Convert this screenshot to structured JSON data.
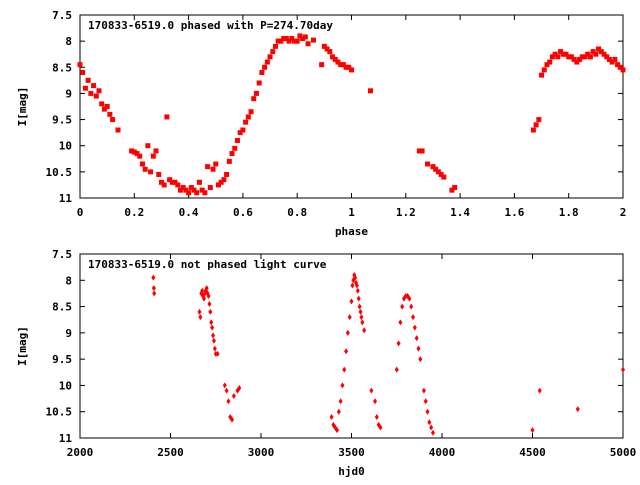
{
  "chart_data": [
    {
      "type": "scatter",
      "title": "170833-6519.0 phased with P=274.70day",
      "xlabel": "phase",
      "ylabel": "I[mag]",
      "xlim": [
        0,
        2
      ],
      "ylim": [
        11,
        7.5
      ],
      "y_inverted": true,
      "xticks": [
        0,
        0.2,
        0.4,
        0.6,
        0.8,
        1,
        1.2,
        1.4,
        1.6,
        1.8,
        2
      ],
      "xtick_labels": [
        "0",
        "0.2",
        "0.4",
        "0.6",
        "0.8",
        "1",
        "1.2",
        "1.4",
        "1.6",
        "1.8",
        "2"
      ],
      "yticks": [
        7.5,
        8,
        8.5,
        9,
        9.5,
        10,
        10.5,
        11
      ],
      "ytick_labels": [
        "7.5",
        "8",
        "8.5",
        "9",
        "9.5",
        "10",
        "10.5",
        "11"
      ],
      "grid": false,
      "marker_color": "#ff0000",
      "series": [
        {
          "x": [
            0.0,
            0.01,
            0.02,
            0.03,
            0.04,
            0.05,
            0.06,
            0.07,
            0.08,
            0.09,
            0.1,
            0.11,
            0.12,
            0.14,
            0.19,
            0.2,
            0.21,
            0.22,
            0.23,
            0.24,
            0.25,
            0.26,
            0.27,
            0.28,
            0.29,
            0.3,
            0.31,
            0.32,
            0.33,
            0.34,
            0.35,
            0.36,
            0.37,
            0.38,
            0.39,
            0.4,
            0.41,
            0.42,
            0.43,
            0.44,
            0.45,
            0.46,
            0.47,
            0.48,
            0.49,
            0.5,
            0.51,
            0.52,
            0.53,
            0.54,
            0.55,
            0.56,
            0.57,
            0.58,
            0.59,
            0.6,
            0.61,
            0.62,
            0.63,
            0.64,
            0.65,
            0.66,
            0.67,
            0.68,
            0.69,
            0.7,
            0.71,
            0.72,
            0.73,
            0.74,
            0.75,
            0.76,
            0.77,
            0.78,
            0.79,
            0.8,
            0.81,
            0.82,
            0.83,
            0.84,
            0.86,
            0.89,
            0.9,
            0.91,
            0.92,
            0.93,
            0.94,
            0.95,
            0.96,
            0.97,
            0.98,
            0.99,
            1.0,
            1.07,
            1.25,
            1.26,
            1.28,
            1.3,
            1.31,
            1.32,
            1.33,
            1.34,
            1.37,
            1.38,
            1.67,
            1.68,
            1.69,
            1.7,
            1.71,
            1.72,
            1.73,
            1.74,
            1.75,
            1.76,
            1.77,
            1.78,
            1.79,
            1.8,
            1.81,
            1.82,
            1.83,
            1.84,
            1.85,
            1.86,
            1.87,
            1.88,
            1.89,
            1.9,
            1.91,
            1.92,
            1.93,
            1.94,
            1.95,
            1.96,
            1.97,
            1.98,
            1.99,
            2.0
          ],
          "y": [
            8.45,
            8.6,
            8.9,
            8.75,
            9.0,
            8.85,
            9.05,
            8.95,
            9.2,
            9.3,
            9.25,
            9.4,
            9.5,
            9.7,
            10.1,
            10.12,
            10.15,
            10.2,
            10.35,
            10.45,
            10.0,
            10.5,
            10.2,
            10.1,
            10.55,
            10.7,
            10.75,
            9.45,
            10.65,
            10.7,
            10.7,
            10.75,
            10.85,
            10.8,
            10.85,
            10.9,
            10.8,
            10.85,
            10.9,
            10.7,
            10.85,
            10.9,
            10.4,
            10.8,
            10.45,
            10.35,
            10.75,
            10.7,
            10.65,
            10.55,
            10.3,
            10.15,
            10.05,
            9.9,
            9.75,
            9.7,
            9.55,
            9.45,
            9.35,
            9.1,
            9.0,
            8.8,
            8.6,
            8.5,
            8.4,
            8.3,
            8.2,
            8.1,
            8.0,
            8.0,
            7.95,
            7.95,
            8.0,
            7.95,
            8.0,
            8.0,
            7.9,
            7.95,
            7.92,
            8.05,
            7.98,
            8.45,
            8.1,
            8.15,
            8.2,
            8.3,
            8.35,
            8.4,
            8.45,
            8.45,
            8.5,
            8.5,
            8.55,
            8.95,
            10.1,
            10.1,
            10.35,
            10.4,
            10.45,
            10.5,
            10.55,
            10.6,
            10.85,
            10.8,
            9.7,
            9.6,
            9.5,
            8.65,
            8.55,
            8.45,
            8.4,
            8.3,
            8.25,
            8.3,
            8.2,
            8.25,
            8.25,
            8.3,
            8.3,
            8.35,
            8.4,
            8.35,
            8.3,
            8.3,
            8.25,
            8.3,
            8.2,
            8.25,
            8.15,
            8.2,
            8.25,
            8.3,
            8.35,
            8.4,
            8.35,
            8.45,
            8.5,
            8.55
          ]
        }
      ]
    },
    {
      "type": "scatter",
      "title": "170833-6519.0 not phased light curve",
      "xlabel": "hjd0",
      "ylabel": "I[mag]",
      "xlim": [
        2000,
        5000
      ],
      "ylim": [
        11,
        7.5
      ],
      "y_inverted": true,
      "xticks": [
        2000,
        2500,
        3000,
        3500,
        4000,
        4500,
        5000
      ],
      "xtick_labels": [
        "2000",
        "2500",
        "3000",
        "3500",
        "4000",
        "4500",
        "5000"
      ],
      "yticks": [
        7.5,
        8,
        8.5,
        9,
        9.5,
        10,
        10.5,
        11
      ],
      "ytick_labels": [
        "7.5",
        "8",
        "8.5",
        "9",
        "9.5",
        "10",
        "10.5",
        "11"
      ],
      "grid": false,
      "marker_color": "#ff0000",
      "series": [
        {
          "x": [
            2405,
            2408,
            2410,
            2660,
            2665,
            2670,
            2675,
            2680,
            2685,
            2690,
            2695,
            2700,
            2705,
            2710,
            2715,
            2720,
            2725,
            2730,
            2735,
            2740,
            2745,
            2750,
            2760,
            2800,
            2810,
            2820,
            2830,
            2840,
            2850,
            2870,
            2880,
            3390,
            3400,
            3410,
            3420,
            3430,
            3440,
            3450,
            3460,
            3470,
            3480,
            3490,
            3500,
            3505,
            3510,
            3515,
            3520,
            3525,
            3530,
            3535,
            3540,
            3545,
            3550,
            3555,
            3560,
            3570,
            3610,
            3630,
            3640,
            3650,
            3660,
            3750,
            3760,
            3770,
            3780,
            3790,
            3800,
            3810,
            3820,
            3830,
            3840,
            3850,
            3860,
            3870,
            3880,
            3900,
            3910,
            3920,
            3930,
            3940,
            3950,
            4500,
            4540,
            4750,
            5000
          ],
          "y": [
            7.95,
            8.15,
            8.25,
            8.6,
            8.7,
            8.25,
            8.2,
            8.3,
            8.35,
            8.25,
            8.2,
            8.15,
            8.25,
            8.3,
            8.45,
            8.6,
            8.8,
            8.9,
            9.05,
            9.15,
            9.3,
            9.4,
            9.4,
            10.0,
            10.1,
            10.3,
            10.6,
            10.65,
            10.2,
            10.1,
            10.05,
            10.6,
            10.75,
            10.8,
            10.85,
            10.5,
            10.3,
            10.0,
            9.7,
            9.35,
            9.0,
            8.7,
            8.4,
            8.1,
            8.0,
            7.9,
            7.95,
            8.05,
            8.1,
            8.2,
            8.35,
            8.5,
            8.6,
            8.7,
            8.8,
            8.95,
            10.1,
            10.3,
            10.6,
            10.75,
            10.8,
            9.7,
            9.2,
            8.8,
            8.5,
            8.35,
            8.3,
            8.3,
            8.35,
            8.5,
            8.7,
            8.9,
            9.1,
            9.3,
            9.5,
            10.1,
            10.3,
            10.5,
            10.7,
            10.8,
            10.9,
            10.85,
            10.1,
            10.45,
            9.7
          ]
        }
      ]
    }
  ]
}
